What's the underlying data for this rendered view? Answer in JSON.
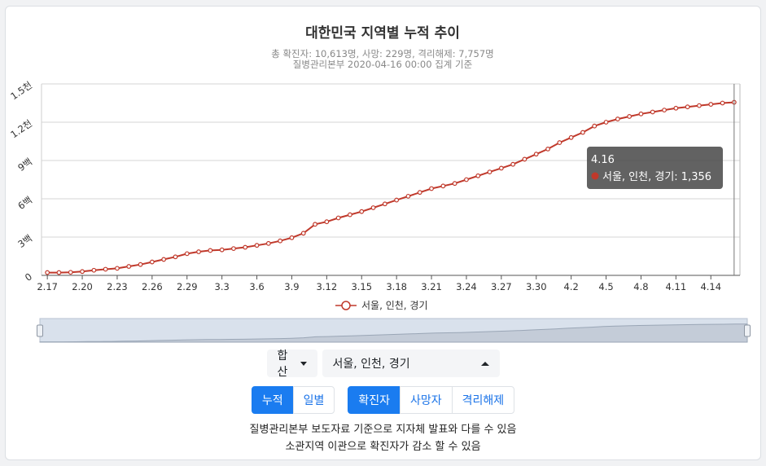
{
  "chart_data": {
    "type": "line",
    "title": "대한민국 지역별 누적 추이",
    "subtitle_lines": [
      "총 확진자: 10,613명, 사망: 229명, 격리해제: 7,757명",
      "질병관리본부 2020-04-16 00:00 집계 기준"
    ],
    "x": [
      "2.17",
      "2.18",
      "2.19",
      "2.20",
      "2.21",
      "2.22",
      "2.23",
      "2.24",
      "2.25",
      "2.26",
      "2.27",
      "2.28",
      "2.29",
      "3.1",
      "3.2",
      "3.3",
      "3.4",
      "3.5",
      "3.6",
      "3.7",
      "3.8",
      "3.9",
      "3.10",
      "3.11",
      "3.12",
      "3.13",
      "3.14",
      "3.15",
      "3.16",
      "3.17",
      "3.18",
      "3.19",
      "3.20",
      "3.21",
      "3.22",
      "3.23",
      "3.24",
      "3.25",
      "3.26",
      "3.27",
      "3.28",
      "3.29",
      "3.30",
      "3.31",
      "4.1",
      "4.2",
      "4.3",
      "4.4",
      "4.5",
      "4.6",
      "4.7",
      "4.8",
      "4.9",
      "4.10",
      "4.11",
      "4.12",
      "4.13",
      "4.14",
      "4.15",
      "4.16"
    ],
    "x_tick_labels": [
      "2.17",
      "2.20",
      "2.23",
      "2.26",
      "2.29",
      "3.3",
      "3.6",
      "3.9",
      "3.12",
      "3.15",
      "3.18",
      "3.21",
      "3.24",
      "3.27",
      "3.30",
      "4.2",
      "4.5",
      "4.8",
      "4.11",
      "4.14"
    ],
    "series": [
      {
        "name": "서울, 인천, 경기",
        "color": "#c0392b",
        "values": [
          22,
          22,
          24,
          30,
          40,
          48,
          55,
          70,
          85,
          105,
          125,
          145,
          170,
          185,
          195,
          200,
          210,
          220,
          235,
          250,
          270,
          295,
          330,
          400,
          420,
          450,
          475,
          500,
          530,
          560,
          590,
          620,
          650,
          680,
          700,
          720,
          750,
          780,
          810,
          840,
          870,
          910,
          950,
          990,
          1040,
          1080,
          1120,
          1170,
          1200,
          1225,
          1245,
          1265,
          1280,
          1295,
          1310,
          1320,
          1330,
          1340,
          1350,
          1356
        ]
      }
    ],
    "y_ticks": [
      0,
      300,
      600,
      900,
      1200,
      1500
    ],
    "y_tick_labels": [
      "0",
      "3백",
      "6백",
      "9백",
      "1.2천",
      "1.5천"
    ],
    "ylim": [
      0,
      1500
    ],
    "grid": true,
    "legend": "bottom-center",
    "tooltip": {
      "x": "4.16",
      "series": "서울, 인천, 경기",
      "value": "1,356"
    }
  },
  "controls": {
    "sum_dropdown": "합산",
    "region_select": "서울, 인천, 경기",
    "mode_buttons": [
      "누적",
      "일별"
    ],
    "mode_active": 0,
    "metric_buttons": [
      "확진자",
      "사망자",
      "격리해제"
    ],
    "metric_active": 0
  },
  "notes": [
    "질병관리본부 보도자료 기준으로 지자체 발표와 다를 수 있음",
    "소관지역 이관으로 확진자가 감소 할 수 있음"
  ]
}
